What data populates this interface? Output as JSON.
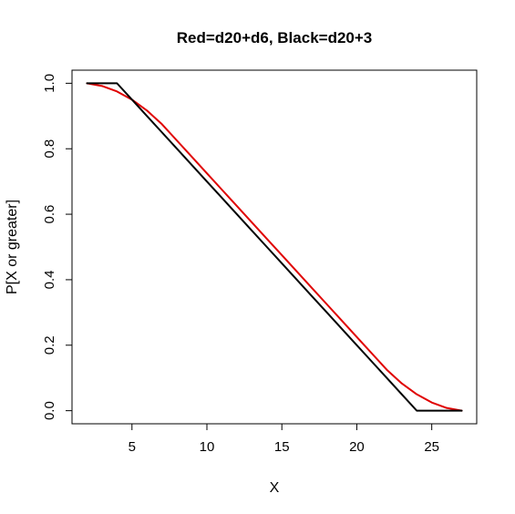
{
  "chart_data": {
    "type": "line",
    "title": "Red=d20+d6, Black=d20+3",
    "xlabel": "X",
    "ylabel": "P[X or greater]",
    "xlim": [
      1.0,
      28.0
    ],
    "ylim": [
      -0.04,
      1.04
    ],
    "xticks": [
      5,
      10,
      15,
      20,
      25
    ],
    "yticks": [
      "0.0",
      "0.2",
      "0.4",
      "0.6",
      "0.8",
      "1.0"
    ],
    "grid": false,
    "legend": "none",
    "series": [
      {
        "color": "#e00000",
        "x": [
          2,
          3,
          4,
          5,
          6,
          7,
          8,
          9,
          10,
          11,
          12,
          13,
          14,
          15,
          16,
          17,
          18,
          19,
          20,
          21,
          22,
          23,
          24,
          25,
          26,
          27
        ],
        "y": [
          1.0,
          0.9917,
          0.975,
          0.95,
          0.9167,
          0.875,
          0.825,
          0.775,
          0.725,
          0.675,
          0.625,
          0.575,
          0.525,
          0.475,
          0.425,
          0.375,
          0.325,
          0.275,
          0.225,
          0.175,
          0.125,
          0.0833,
          0.05,
          0.025,
          0.0083,
          0.0
        ]
      },
      {
        "color": "#000000",
        "x": [
          2,
          3,
          4,
          5,
          6,
          7,
          8,
          9,
          10,
          11,
          12,
          13,
          14,
          15,
          16,
          17,
          18,
          19,
          20,
          21,
          22,
          23,
          24,
          25,
          26,
          27
        ],
        "y": [
          1.0,
          1.0,
          1.0,
          0.95,
          0.9,
          0.85,
          0.8,
          0.75,
          0.7,
          0.65,
          0.6,
          0.55,
          0.5,
          0.45,
          0.4,
          0.35,
          0.3,
          0.25,
          0.2,
          0.15,
          0.1,
          0.05,
          0.0,
          0.0,
          0.0,
          0.0
        ]
      }
    ]
  }
}
